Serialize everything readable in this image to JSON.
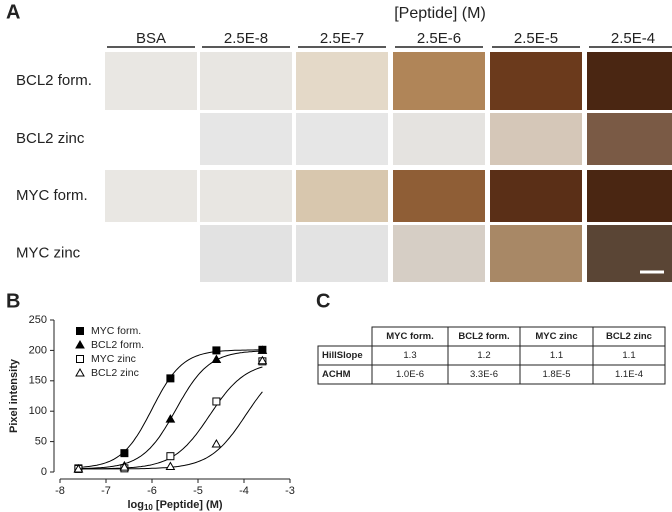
{
  "panel_a": {
    "label": "A",
    "title": "[Peptide] (M)",
    "columns": [
      "BSA",
      "2.5E-8",
      "2.5E-7",
      "2.5E-6",
      "2.5E-5",
      "2.5E-4"
    ],
    "rows": [
      "BCL2 form.",
      "BCL2 zinc",
      "MYC form.",
      "MYC zinc"
    ]
  },
  "panel_b_label": "B",
  "chart_data": {
    "type": "scatter",
    "y_label": "Pixel intensity",
    "x_label": "log",
    "x_label_sub": "10",
    "x_label_rest": " [Peptide] (M)",
    "x": [
      -7.6,
      -6.6,
      -5.6,
      -4.6,
      -3.6
    ],
    "series": [
      {
        "name": "MYC form.",
        "color": "#000000",
        "marker": "square",
        "filled": true,
        "values": [
          6,
          31,
          154,
          200,
          201
        ]
      },
      {
        "name": "BCL2 form.",
        "color": "#000000",
        "marker": "triangle",
        "filled": true,
        "values": [
          5,
          10,
          87,
          185,
          200
        ]
      },
      {
        "name": "MYC zinc",
        "color": "#000000",
        "marker": "square",
        "filled": false,
        "values": [
          5,
          6,
          26,
          116,
          182
        ]
      },
      {
        "name": "BCL2 zinc",
        "color": "#000000",
        "marker": "triangle",
        "filled": false,
        "values": [
          5,
          8,
          9,
          46,
          183
        ]
      }
    ],
    "xlim": [
      -8,
      -3
    ],
    "xticks": [
      -8,
      -7,
      -6,
      -5,
      -4,
      -3
    ],
    "ylim": [
      0,
      250
    ],
    "yticks": [
      0,
      50,
      100,
      150,
      200,
      250
    ],
    "legend": "upper left"
  },
  "panel_c": {
    "label": "C",
    "columns": [
      "MYC form.",
      "BCL2 form.",
      "MYC zinc",
      "BCL2 zinc"
    ],
    "rows": [
      {
        "label": "HillSlope",
        "values": [
          1.3,
          1.2,
          1.1,
          1.1
        ]
      },
      {
        "label": "ACHM",
        "values": [
          "1.0E-6",
          "3.3E-6",
          "1.8E-5",
          "1.1E-4"
        ]
      }
    ]
  }
}
